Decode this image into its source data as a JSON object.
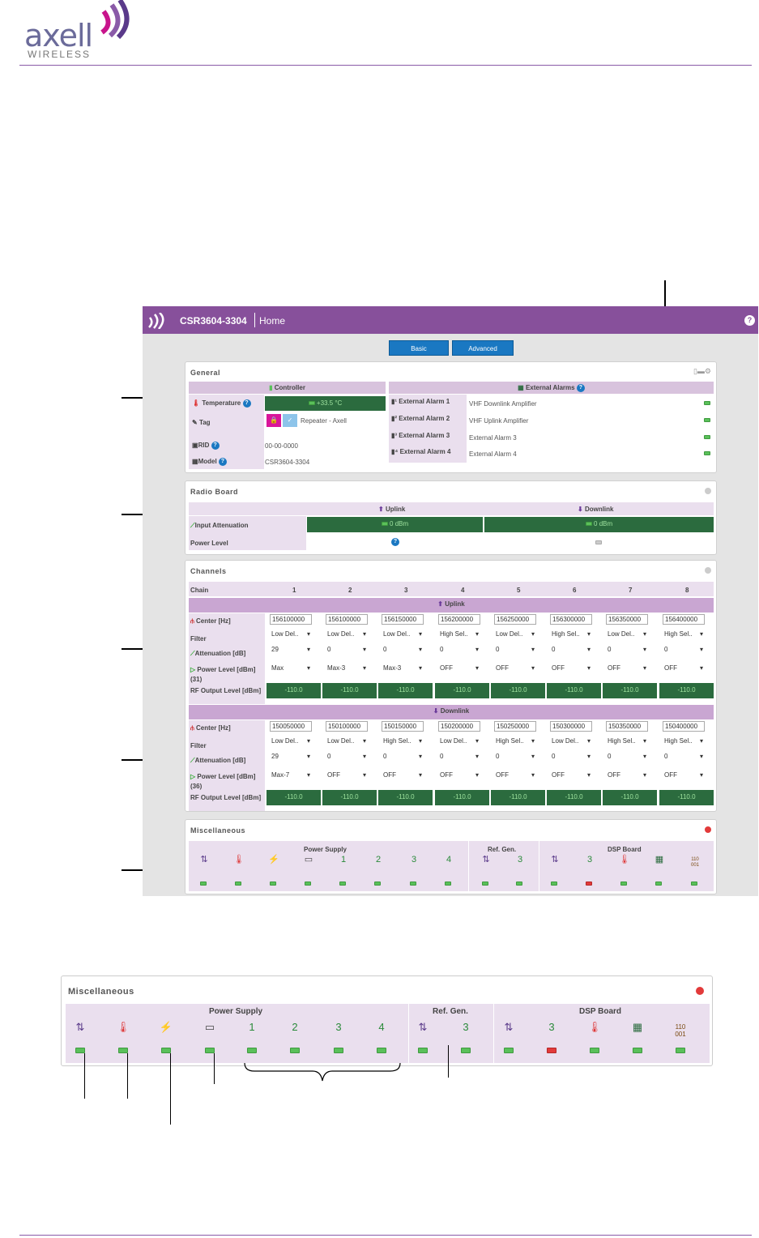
{
  "logo": {
    "word": "axell",
    "sub": "WIRELESS"
  },
  "app": {
    "title": "CSR3604-3304",
    "page": "Home",
    "help_icon": "?"
  },
  "tabs": [
    "Basic",
    "Advanced"
  ],
  "general": {
    "title": "General",
    "controller_hdr": "Controller",
    "ext_hdr": "External Alarms",
    "temperature_label": "Temperature",
    "temperature_value": "+33.5 °C",
    "tag_label": "Tag",
    "tag_value": "Repeater - Axell",
    "rid_label": "RID",
    "rid_value": "00-00-0000",
    "model_label": "Model",
    "model_value": "CSR3604-3304",
    "alarms": [
      {
        "name": "External Alarm 1",
        "value": "VHF Downlink Amplifier"
      },
      {
        "name": "External Alarm 2",
        "value": "VHF Uplink Amplifier"
      },
      {
        "name": "External Alarm 3",
        "value": "External Alarm 3"
      },
      {
        "name": "External Alarm 4",
        "value": "External Alarm 4"
      }
    ]
  },
  "radio": {
    "title": "Radio Board",
    "uplink": "Uplink",
    "downlink": "Downlink",
    "att_label": "Input Attenuation",
    "att_up": "0 dBm",
    "att_down": "0 dBm",
    "power_label": "Power Level"
  },
  "channels": {
    "title": "Channels",
    "chain_label": "Chain",
    "chains": [
      "1",
      "2",
      "3",
      "4",
      "5",
      "6",
      "7",
      "8"
    ],
    "uplink_label": "Uplink",
    "downlink_label": "Downlink",
    "center_label": "Center [Hz]",
    "filter_label": "Filter",
    "att_label": "Attenuation [dB]",
    "power_up_label": "Power Level [dBm] (31)",
    "power_down_label": "Power Level [dBm] (36)",
    "rf_label": "RF Output Level [dBm]",
    "up": {
      "center": [
        "156100000",
        "156100000",
        "156150000",
        "156200000",
        "156250000",
        "156300000",
        "156350000",
        "156400000"
      ],
      "filter": [
        "Low Del..",
        "Low Del..",
        "Low Del..",
        "High Sel..",
        "Low Del..",
        "High Sel..",
        "Low Del..",
        "High Sel.."
      ],
      "att": [
        "29",
        "0",
        "0",
        "0",
        "0",
        "0",
        "0",
        "0"
      ],
      "power": [
        "Max",
        "Max-3",
        "Max-3",
        "OFF",
        "OFF",
        "OFF",
        "OFF",
        "OFF"
      ],
      "rf": [
        "-110.0",
        "-110.0",
        "-110.0",
        "-110.0",
        "-110.0",
        "-110.0",
        "-110.0",
        "-110.0"
      ]
    },
    "down": {
      "center": [
        "150050000",
        "150100000",
        "150150000",
        "150200000",
        "150250000",
        "150300000",
        "150350000",
        "150400000"
      ],
      "filter": [
        "Low Del..",
        "Low Del..",
        "High Sel..",
        "Low Del..",
        "High Sel..",
        "Low Del..",
        "High Sel..",
        "High Sel.."
      ],
      "att": [
        "29",
        "0",
        "0",
        "0",
        "0",
        "0",
        "0",
        "0"
      ],
      "power": [
        "Max-7",
        "OFF",
        "OFF",
        "OFF",
        "OFF",
        "OFF",
        "OFF",
        "OFF"
      ],
      "rf": [
        "-110.0",
        "-110.0",
        "-110.0",
        "-110.0",
        "-110.0",
        "-110.0",
        "-110.0",
        "-110.0"
      ]
    }
  },
  "misc": {
    "title": "Miscellaneous",
    "groups": [
      "Power Supply",
      "Ref. Gen.",
      "DSP Board"
    ],
    "icons": [
      "⇅",
      "🌡",
      "⚡",
      "▭",
      "1",
      "2",
      "3",
      "4",
      "⇅",
      "3",
      "⇅",
      "3",
      "🌡",
      "▦",
      "110\n001"
    ],
    "leds": [
      "green",
      "green",
      "green",
      "green",
      "green",
      "green",
      "green",
      "green",
      "green",
      "green",
      "green",
      "red",
      "green",
      "green",
      "green"
    ]
  }
}
